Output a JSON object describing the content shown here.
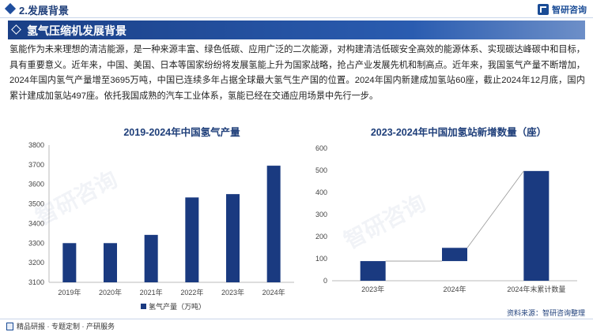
{
  "header": {
    "section_title": "2.发展背景",
    "logo_text": "智研咨询"
  },
  "banner": {
    "title": "氢气压缩机发展背景"
  },
  "intro": {
    "text": "氢能作为未来理想的清洁能源，是一种来源丰富、绿色低碳、应用广泛的二次能源，对构建清洁低碳安全高效的能源体系、实现碳达峰碳中和目标，具有重要意义。近年来，中国、美国、日本等国家纷纷将发展氢能上升为国家战略，抢占产业发展先机和制高点。近年来，我国氢气产量不断增加，2024年国内氢气产量增至3695万吨，中国已连续多年占据全球最大氢气生产国的位置。2024年国内新建成加氢站60座，截止2024年12月底，国内累计建成加氢站497座。依托我国成熟的汽车工业体系，氢能已经在交通应用场景中先行一步。"
  },
  "footer": {
    "left_text": "精品研报 · 专题定制 · 产研服务",
    "source": "资料来源：智研咨询整理"
  },
  "watermark": {
    "text": "智研咨询"
  },
  "colors": {
    "bar": "#1a3a80",
    "accent": "#1f4e9e"
  },
  "chart_data": [
    {
      "type": "bar",
      "title": "2019-2024年中国氢气产量",
      "categories": [
        "2019年",
        "2020年",
        "2021年",
        "2022年",
        "2023年",
        "2024年"
      ],
      "series": [
        {
          "name": "氢气产量（万吨）",
          "values": [
            3300,
            3300,
            3342,
            3533,
            3550,
            3695
          ]
        }
      ],
      "ylim": [
        3100,
        3800
      ],
      "yticks": [
        3100,
        3200,
        3300,
        3400,
        3500,
        3600,
        3700,
        3800
      ],
      "grid": false,
      "legend": "bottom"
    },
    {
      "type": "bar",
      "title": "2023-2024年中国加氢站新增数量（座）",
      "categories": [
        "2023年",
        "2024年",
        "2024年末累计数量"
      ],
      "waterfall": true,
      "values": [
        89,
        60,
        497
      ],
      "bases": [
        0,
        89,
        0
      ],
      "ylim": [
        0,
        600
      ],
      "yticks": [
        0,
        100,
        200,
        300,
        400,
        500,
        600
      ],
      "grid": false
    }
  ]
}
